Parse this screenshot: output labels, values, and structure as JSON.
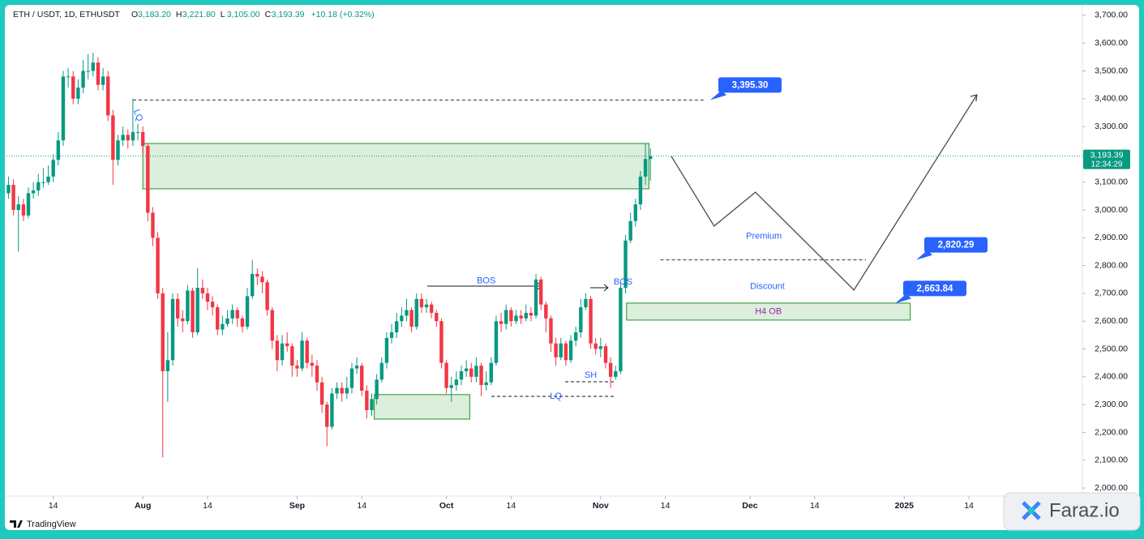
{
  "chart_data": {
    "type": "candlestick",
    "symbol": "ETH / USDT, 1D, ETHUSDT",
    "ohlc_header": [
      {
        "label": "O",
        "value": "3,183.20"
      },
      {
        "label": "H",
        "value": "3,221.80"
      },
      {
        "label": "L",
        "value": "3,105.00"
      },
      {
        "label": "C",
        "value": "3,193.39"
      }
    ],
    "change": "+10.18 (+0.32%)",
    "up_color": "#089981",
    "down_color": "#f23645",
    "xlim": [
      3.6,
      219.8
    ],
    "xticks": [
      {
        "value": 13,
        "label": "14"
      },
      {
        "value": 31,
        "label": "Aug"
      },
      {
        "value": 44,
        "label": "14"
      },
      {
        "value": 62,
        "label": "Sep"
      },
      {
        "value": 75,
        "label": "14"
      },
      {
        "value": 92,
        "label": "Oct"
      },
      {
        "value": 105,
        "label": "14"
      },
      {
        "value": 123,
        "label": "Nov"
      },
      {
        "value": 136,
        "label": "14"
      },
      {
        "value": 153,
        "label": "Dec"
      },
      {
        "value": 166,
        "label": "14"
      },
      {
        "value": 184,
        "label": "2025"
      },
      {
        "value": 197,
        "label": "14"
      }
    ],
    "ylim": [
      1977,
      3720
    ],
    "yticks": [
      {
        "value": 2000,
        "label": "2,000.00"
      },
      {
        "value": 2100,
        "label": "2,100.00"
      },
      {
        "value": 2200,
        "label": "2,200.00"
      },
      {
        "value": 2300,
        "label": "2,300.00"
      },
      {
        "value": 2400,
        "label": "2,400.00"
      },
      {
        "value": 2500,
        "label": "2,500.00"
      },
      {
        "value": 2600,
        "label": "2,600.00"
      },
      {
        "value": 2700,
        "label": "2,700.00"
      },
      {
        "value": 2800,
        "label": "2,800.00"
      },
      {
        "value": 2900,
        "label": "2,900.00"
      },
      {
        "value": 3000,
        "label": "3,000.00"
      },
      {
        "value": 3100,
        "label": "3,100.00"
      },
      {
        "value": 3200,
        "label": "3,200.00"
      },
      {
        "value": 3300,
        "label": "3,300.00"
      },
      {
        "value": 3400,
        "label": "3,400.00"
      },
      {
        "value": 3500,
        "label": "3,500.00"
      },
      {
        "value": 3600,
        "label": "3,600.00"
      },
      {
        "value": 3700,
        "label": "3,700.00"
      }
    ],
    "x": [
      4,
      5,
      6,
      7,
      8,
      9,
      10,
      11,
      12,
      13,
      14,
      15,
      16,
      17,
      18,
      19,
      20,
      21,
      22,
      23,
      24,
      25,
      26,
      27,
      28,
      29,
      30,
      31,
      32,
      33,
      34,
      35,
      36,
      37,
      38,
      39,
      40,
      41,
      42,
      43,
      44,
      45,
      46,
      47,
      48,
      49,
      50,
      51,
      52,
      53,
      54,
      55,
      56,
      57,
      58,
      59,
      60,
      61,
      62,
      63,
      64,
      65,
      66,
      67,
      68,
      69,
      70,
      71,
      72,
      73,
      74,
      75,
      76,
      77,
      78,
      79,
      80,
      81,
      82,
      83,
      84,
      85,
      86,
      87,
      88,
      89,
      90,
      91,
      92,
      93,
      94,
      95,
      96,
      97,
      98,
      99,
      100,
      101,
      102,
      103,
      104,
      105,
      106,
      107,
      108,
      109,
      110,
      111,
      112,
      113,
      114,
      115,
      116,
      117,
      118,
      119,
      120,
      121,
      122,
      123,
      124,
      125,
      126,
      127,
      128,
      129,
      130,
      131,
      132,
      133
    ],
    "open": [
      3060,
      3090,
      3000,
      3020,
      2980,
      3060,
      3070,
      3100,
      3100,
      3120,
      3180,
      3250,
      3480,
      3480,
      3400,
      3440,
      3500,
      3500,
      3530,
      3450,
      3480,
      3340,
      3180,
      3250,
      3270,
      3250,
      3280,
      3280,
      3230,
      2990,
      2900,
      2700,
      2420,
      2460,
      2680,
      2610,
      2600,
      2710,
      2560,
      2720,
      2700,
      2670,
      2650,
      2570,
      2590,
      2610,
      2640,
      2610,
      2580,
      2690,
      2770,
      2760,
      2740,
      2640,
      2530,
      2460,
      2520,
      2510,
      2440,
      2430,
      2530,
      2450,
      2440,
      2380,
      2300,
      2220,
      2340,
      2360,
      2340,
      2360,
      2430,
      2440,
      2350,
      2280,
      2320,
      2390,
      2450,
      2540,
      2560,
      2600,
      2620,
      2640,
      2580,
      2680,
      2650,
      2660,
      2630,
      2600,
      2450,
      2360,
      2370,
      2390,
      2420,
      2430,
      2400,
      2440,
      2370,
      2380,
      2450,
      2600,
      2590,
      2640,
      2600,
      2620,
      2610,
      2630,
      2620,
      2750,
      2660,
      2610,
      2520,
      2470,
      2520,
      2460,
      2530,
      2560,
      2650,
      2680,
      2520,
      2500,
      2510,
      2450,
      2400,
      2420,
      2720,
      2890,
      2960,
      3020,
      3120,
      3183.2
    ],
    "high": [
      3120,
      3110,
      3050,
      3040,
      3080,
      3100,
      3130,
      3150,
      3160,
      3200,
      3280,
      3500,
      3510,
      3500,
      3470,
      3540,
      3560,
      3565,
      3550,
      3510,
      3500,
      3360,
      3270,
      3300,
      3290,
      3400,
      3310,
      3300,
      3240,
      3010,
      2920,
      2720,
      2560,
      2700,
      2700,
      2640,
      2730,
      2720,
      2790,
      2750,
      2720,
      2690,
      2660,
      2620,
      2640,
      2660,
      2650,
      2620,
      2720,
      2820,
      2790,
      2780,
      2750,
      2650,
      2550,
      2550,
      2560,
      2520,
      2460,
      2560,
      2540,
      2480,
      2460,
      2400,
      2310,
      2360,
      2380,
      2380,
      2400,
      2450,
      2470,
      2450,
      2370,
      2340,
      2410,
      2470,
      2560,
      2590,
      2630,
      2650,
      2680,
      2650,
      2700,
      2700,
      2680,
      2670,
      2640,
      2610,
      2460,
      2400,
      2420,
      2440,
      2460,
      2450,
      2470,
      2450,
      2420,
      2470,
      2620,
      2630,
      2660,
      2650,
      2640,
      2640,
      2660,
      2650,
      2770,
      2760,
      2670,
      2620,
      2540,
      2540,
      2530,
      2550,
      2580,
      2680,
      2700,
      2690,
      2540,
      2540,
      2520,
      2470,
      2440,
      2740,
      2910,
      2990,
      3040,
      3140,
      3240,
      3221.8
    ],
    "low": [
      3040,
      2980,
      2850,
      2960,
      2970,
      3040,
      3050,
      3080,
      3090,
      3100,
      3160,
      3230,
      3440,
      3380,
      3380,
      3420,
      3470,
      3480,
      3430,
      3430,
      3320,
      3090,
      3160,
      3230,
      3220,
      3230,
      3250,
      3200,
      2960,
      2870,
      2680,
      2110,
      2310,
      2440,
      2580,
      2560,
      2590,
      2540,
      2550,
      2680,
      2640,
      2620,
      2550,
      2550,
      2580,
      2590,
      2580,
      2560,
      2570,
      2680,
      2730,
      2700,
      2620,
      2500,
      2420,
      2440,
      2490,
      2400,
      2400,
      2420,
      2430,
      2400,
      2350,
      2270,
      2150,
      2210,
      2320,
      2310,
      2320,
      2340,
      2410,
      2330,
      2250,
      2260,
      2300,
      2380,
      2430,
      2520,
      2540,
      2580,
      2600,
      2560,
      2570,
      2630,
      2630,
      2610,
      2580,
      2430,
      2340,
      2310,
      2350,
      2370,
      2400,
      2380,
      2380,
      2330,
      2350,
      2370,
      2440,
      2560,
      2570,
      2580,
      2590,
      2590,
      2600,
      2600,
      2610,
      2640,
      2560,
      2490,
      2440,
      2460,
      2440,
      2450,
      2510,
      2540,
      2640,
      2500,
      2480,
      2470,
      2430,
      2360,
      2390,
      2410,
      2700,
      2880,
      2940,
      3000,
      3090,
      3105
    ],
    "close": [
      3090,
      3000,
      3020,
      2980,
      3060,
      3070,
      3100,
      3100,
      3120,
      3180,
      3250,
      3480,
      3480,
      3400,
      3440,
      3500,
      3500,
      3530,
      3450,
      3480,
      3340,
      3180,
      3250,
      3270,
      3250,
      3280,
      3280,
      3230,
      2990,
      2900,
      2700,
      2420,
      2460,
      2680,
      2610,
      2600,
      2710,
      2560,
      2720,
      2700,
      2670,
      2650,
      2570,
      2590,
      2610,
      2640,
      2610,
      2580,
      2690,
      2770,
      2760,
      2740,
      2640,
      2530,
      2460,
      2520,
      2510,
      2440,
      2430,
      2530,
      2450,
      2440,
      2380,
      2300,
      2220,
      2340,
      2360,
      2340,
      2360,
      2430,
      2440,
      2350,
      2280,
      2320,
      2390,
      2450,
      2540,
      2560,
      2600,
      2620,
      2640,
      2580,
      2680,
      2650,
      2660,
      2630,
      2600,
      2450,
      2360,
      2370,
      2390,
      2420,
      2430,
      2400,
      2440,
      2370,
      2380,
      2450,
      2600,
      2590,
      2640,
      2600,
      2620,
      2610,
      2630,
      2620,
      2750,
      2660,
      2610,
      2520,
      2470,
      2520,
      2460,
      2530,
      2560,
      2650,
      2680,
      2520,
      2500,
      2510,
      2450,
      2400,
      2420,
      2720,
      2890,
      2960,
      3020,
      3120,
      3183.2,
      3193.39
    ],
    "last_price": {
      "value": 3193.39,
      "label": "3,193.39"
    },
    "countdown": "12:34:29",
    "zones": [
      {
        "x": [
          31,
          132.7
        ],
        "y": [
          3076,
          3239
        ]
      },
      {
        "x": [
          77.5,
          96.7
        ],
        "y": [
          2248,
          2336
        ]
      },
      {
        "label": "H4 OB",
        "x": [
          128.2,
          185.2
        ],
        "y": [
          2604,
          2665
        ]
      }
    ],
    "levels": [
      {
        "value": 3395.3,
        "label": "3,395.30",
        "x": [
          29,
          143.7
        ]
      },
      {
        "value": 2820.29,
        "label": "2,820.29",
        "x": [
          135,
          176.3
        ]
      }
    ],
    "target": {
      "value": 2663.84,
      "label": "2,663.84"
    },
    "projection": {
      "x": [
        137.2,
        145.8,
        154.1,
        173.9,
        198.6
      ],
      "y": [
        3193,
        2942,
        3064,
        2712,
        3414
      ]
    },
    "annotations": [
      {
        "text": "LQ",
        "x": 30,
        "y": 3340
      },
      {
        "text": "BOS",
        "x": 100,
        "y": 2745
      },
      {
        "text": "BOS",
        "x": 127.5,
        "y": 2740
      },
      {
        "text": "SH",
        "x": 121,
        "y": 2405
      },
      {
        "text": "LQ",
        "x": 114,
        "y": 2330
      },
      {
        "text": "Premium",
        "x": 155.8,
        "y": 2905
      },
      {
        "text": "Discount",
        "x": 156.5,
        "y": 2725
      }
    ],
    "brand": "TradingView",
    "watermark": "Faraz.io"
  }
}
